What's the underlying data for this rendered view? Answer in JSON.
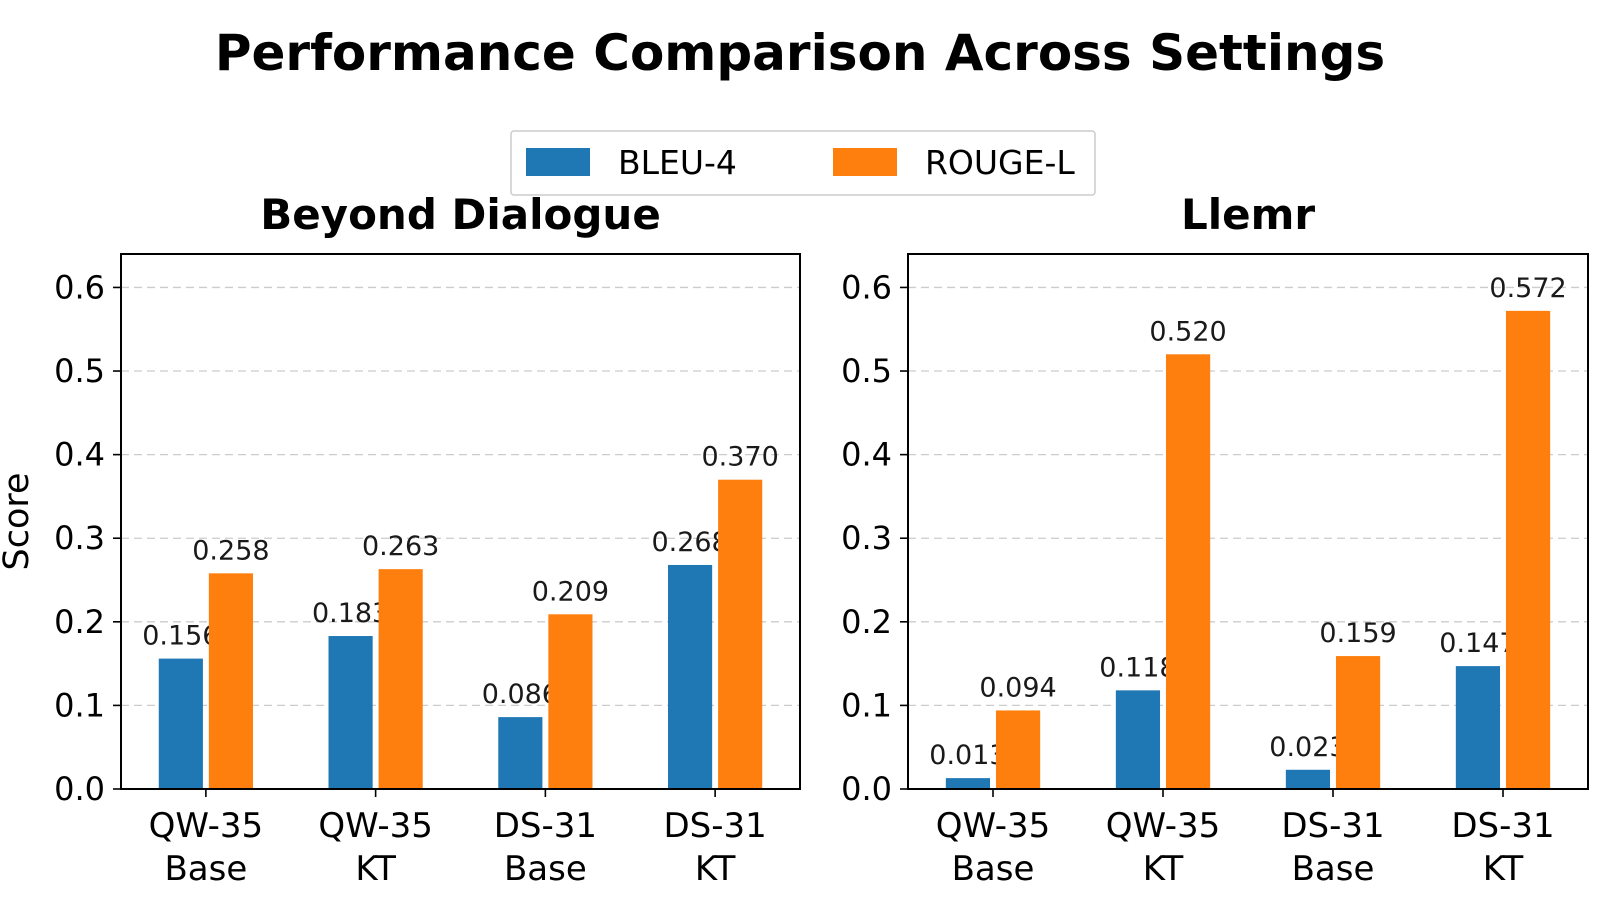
{
  "title": "Performance Comparison Across Settings",
  "legend": {
    "placement": "top-center",
    "items": [
      {
        "name": "BLEU-4",
        "color": "#1f77b4"
      },
      {
        "name": "ROUGE-L",
        "color": "#ff7f0e"
      }
    ]
  },
  "chart_data": [
    {
      "type": "bar",
      "title": "Beyond Dialogue",
      "ylabel": "Score",
      "xlabel": "",
      "ylim": [
        0,
        0.64
      ],
      "yticks": [
        "0.0",
        "0.1",
        "0.2",
        "0.3",
        "0.4",
        "0.5",
        "0.6"
      ],
      "grid": true,
      "categories": [
        [
          "QW-35",
          "Base"
        ],
        [
          "QW-35",
          "KT"
        ],
        [
          "DS-31",
          "Base"
        ],
        [
          "DS-31",
          "KT"
        ]
      ],
      "series": [
        {
          "name": "BLEU-4",
          "values": [
            0.156,
            0.183,
            0.086,
            0.268
          ],
          "labels": [
            "0.156",
            "0.183",
            "0.086",
            "0.268"
          ]
        },
        {
          "name": "ROUGE-L",
          "values": [
            0.258,
            0.263,
            0.209,
            0.37
          ],
          "labels": [
            "0.258",
            "0.263",
            "0.209",
            "0.370"
          ]
        }
      ]
    },
    {
      "type": "bar",
      "title": "Llemr",
      "ylabel": "",
      "xlabel": "",
      "ylim": [
        0,
        0.64
      ],
      "yticks": [
        "0.0",
        "0.1",
        "0.2",
        "0.3",
        "0.4",
        "0.5",
        "0.6"
      ],
      "grid": true,
      "categories": [
        [
          "QW-35",
          "Base"
        ],
        [
          "QW-35",
          "KT"
        ],
        [
          "DS-31",
          "Base"
        ],
        [
          "DS-31",
          "KT"
        ]
      ],
      "series": [
        {
          "name": "BLEU-4",
          "values": [
            0.013,
            0.118,
            0.023,
            0.147
          ],
          "labels": [
            "0.013",
            "0.118",
            "0.023",
            "0.147"
          ]
        },
        {
          "name": "ROUGE-L",
          "values": [
            0.094,
            0.52,
            0.159,
            0.572
          ],
          "labels": [
            "0.094",
            "0.520",
            "0.159",
            "0.572"
          ]
        }
      ]
    }
  ]
}
